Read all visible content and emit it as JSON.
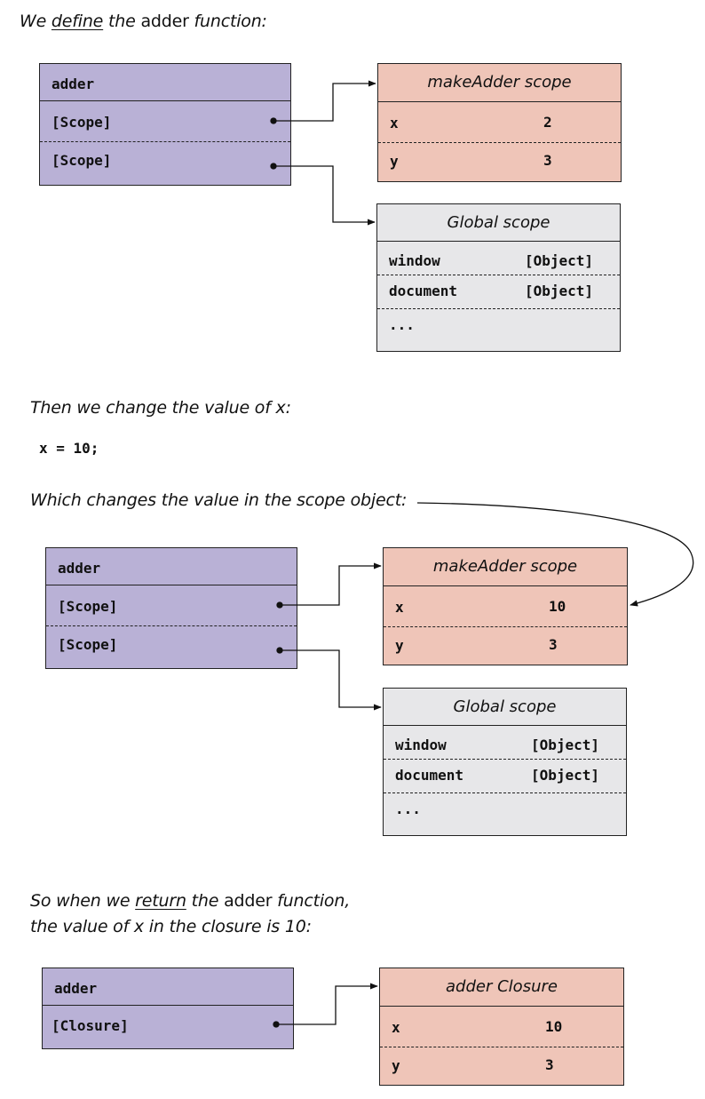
{
  "section1": {
    "caption": {
      "pre": "We ",
      "underlined": "define",
      "mid": " the ",
      "code": "adder",
      "post": " function:"
    },
    "func_box": {
      "name": "adder",
      "rows": [
        "[Scope]",
        "[Scope]"
      ]
    },
    "scope_box": {
      "title": "makeAdder scope",
      "rows": [
        {
          "key": "x",
          "value": "2"
        },
        {
          "key": "y",
          "value": "3"
        }
      ]
    },
    "global_box": {
      "title": "Global scope",
      "rows": [
        {
          "key": "window",
          "value": "[Object]"
        },
        {
          "key": "document",
          "value": "[Object]"
        },
        {
          "key": "...",
          "value": ""
        }
      ]
    }
  },
  "section2": {
    "caption": "Then we change the value of x:",
    "code": "x = 10;",
    "caption2": "Which changes the value in the scope object:",
    "func_box": {
      "name": "adder",
      "rows": [
        "[Scope]",
        "[Scope]"
      ]
    },
    "scope_box": {
      "title": "makeAdder scope",
      "rows": [
        {
          "key": "x",
          "value": "10"
        },
        {
          "key": "y",
          "value": "3"
        }
      ]
    },
    "global_box": {
      "title": "Global scope",
      "rows": [
        {
          "key": "window",
          "value": "[Object]"
        },
        {
          "key": "document",
          "value": "[Object]"
        },
        {
          "key": "...",
          "value": ""
        }
      ]
    }
  },
  "section3": {
    "caption_line1": {
      "pre": "So when we ",
      "underlined": "return",
      "mid": " the ",
      "code": "adder",
      "post": " function,"
    },
    "caption_line2": "the value of x in the closure is 10:",
    "func_box": {
      "name": "adder",
      "rows": [
        "[Closure]"
      ]
    },
    "closure_box": {
      "title": "adder Closure",
      "rows": [
        {
          "key": "x",
          "value": "10"
        },
        {
          "key": "y",
          "value": "3"
        }
      ]
    }
  },
  "colors": {
    "func": "#b9b1d6",
    "scope": "#efc5b8",
    "global": "#e7e7e9",
    "stroke": "#222222"
  }
}
